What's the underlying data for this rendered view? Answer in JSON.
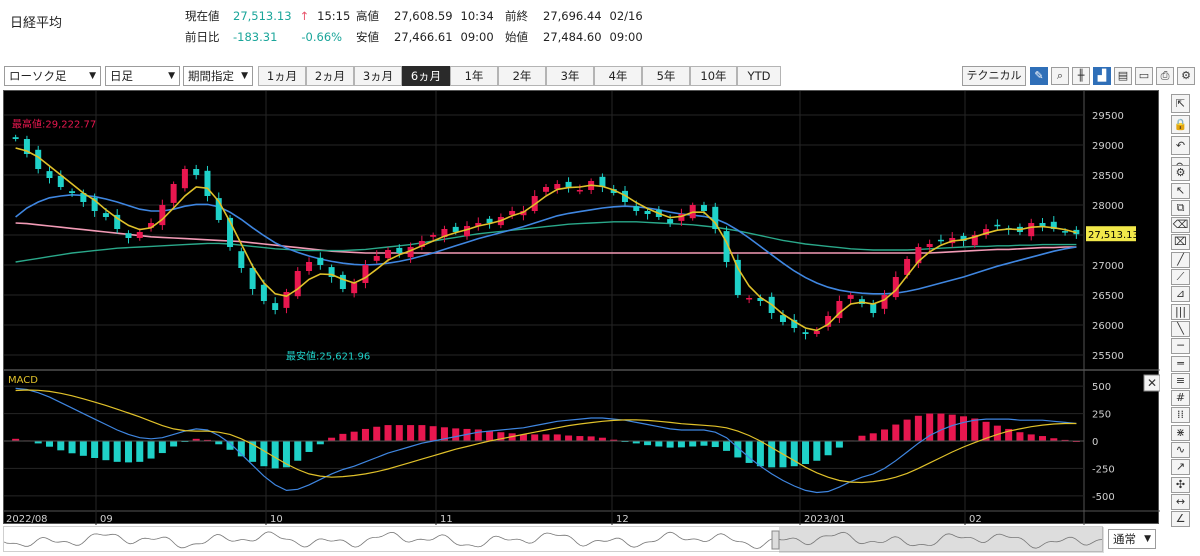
{
  "title": "日経平均",
  "quote": {
    "current_label": "現在値",
    "current_value": "27,513.13",
    "current_arrow": "↑",
    "current_time": "15:15",
    "change_label": "前日比",
    "change_value": "-183.31",
    "change_pct": "-0.66%",
    "high_label": "高値",
    "high_value": "27,608.59",
    "high_time": "10:34",
    "low_label": "安値",
    "low_value": "27,466.61",
    "low_time": "09:00",
    "prev_label": "前終",
    "prev_value": "27,696.44",
    "prev_date": "02/16",
    "open_label": "始値",
    "open_value": "27,484.60",
    "open_time": "09:00"
  },
  "toolbar": {
    "chart_type": "ローソク足",
    "interval": "日足",
    "period": "期間指定",
    "ranges": [
      "1ヵ月",
      "2ヵ月",
      "3ヵ月",
      "6ヵ月",
      "1年",
      "2年",
      "3年",
      "4年",
      "5年",
      "10年",
      "YTD"
    ],
    "active_range": "6ヵ月",
    "technical_label": "テクニカル",
    "icons": [
      "pen-icon",
      "zoom-icon",
      "bar-chart-icon",
      "area-chart-icon",
      "save-icon",
      "folder-icon",
      "print-icon",
      "settings-icon"
    ]
  },
  "chart_data": [
    {
      "type": "candlestick",
      "title": "",
      "x_labels": [
        "2022/08",
        "09",
        "10",
        "11",
        "12",
        "2023/01",
        "02"
      ],
      "yticks": [
        29500,
        29000,
        28500,
        28000,
        27500,
        27000,
        26500,
        26000,
        25500
      ],
      "ylim": [
        25300,
        29800
      ],
      "max_label": "最高値:29,222.77",
      "min_label": "最安値:25,621.96",
      "last_price": "27,513.13",
      "close": [
        29100,
        28850,
        28600,
        28450,
        28300,
        28200,
        28050,
        27900,
        27800,
        27600,
        27450,
        27550,
        27700,
        28000,
        28350,
        28600,
        28500,
        28150,
        27750,
        27300,
        26950,
        26600,
        26400,
        26250,
        26550,
        26900,
        27050,
        27000,
        26800,
        26600,
        26700,
        27000,
        27150,
        27250,
        27200,
        27300,
        27400,
        27500,
        27600,
        27550,
        27650,
        27700,
        27700,
        27800,
        27900,
        27900,
        28150,
        28300,
        28350,
        28300,
        28250,
        28400,
        28300,
        28200,
        28050,
        27900,
        27850,
        27800,
        27700,
        27850,
        28000,
        27900,
        27600,
        27050,
        26500,
        26450,
        26400,
        26200,
        26050,
        25950,
        25850,
        25900,
        26150,
        26400,
        26500,
        26350,
        26200,
        26500,
        26800,
        27100,
        27300,
        27350,
        27400,
        27450,
        27400,
        27500,
        27600,
        27650,
        27600,
        27550,
        27700,
        27650,
        27600,
        27550,
        27513
      ],
      "ma_short": [
        28950,
        28900,
        28800,
        28650,
        28500,
        28350,
        28200,
        28080,
        27920,
        27780,
        27660,
        27590,
        27620,
        27760,
        27950,
        28150,
        28300,
        28280,
        28060,
        27720,
        27350,
        26980,
        26700,
        26520,
        26480,
        26600,
        26760,
        26850,
        26840,
        26760,
        26700,
        26790,
        26930,
        27080,
        27170,
        27240,
        27320,
        27400,
        27480,
        27540,
        27590,
        27650,
        27690,
        27740,
        27820,
        27880,
        28010,
        28150,
        28260,
        28290,
        28300,
        28330,
        28310,
        28250,
        28160,
        28040,
        27940,
        27860,
        27790,
        27810,
        27880,
        27880,
        27700,
        27380,
        26950,
        26650,
        26460,
        26340,
        26180,
        26060,
        25950,
        25910,
        26010,
        26200,
        26350,
        26380,
        26350,
        26420,
        26580,
        26820,
        27060,
        27220,
        27330,
        27400,
        27420,
        27470,
        27530,
        27580,
        27600,
        27590,
        27630,
        27640,
        27620,
        27590,
        27540
      ],
      "ma_mid": [
        27800,
        27950,
        28050,
        28120,
        28150,
        28170,
        28160,
        28140,
        28100,
        28050,
        27990,
        27930,
        27900,
        27900,
        27930,
        27980,
        28010,
        28010,
        27970,
        27880,
        27760,
        27620,
        27490,
        27370,
        27280,
        27210,
        27150,
        27100,
        27060,
        27030,
        27010,
        27000,
        27010,
        27030,
        27060,
        27100,
        27150,
        27200,
        27260,
        27320,
        27380,
        27440,
        27490,
        27540,
        27590,
        27640,
        27700,
        27760,
        27820,
        27860,
        27890,
        27920,
        27950,
        27970,
        27980,
        27970,
        27950,
        27920,
        27880,
        27850,
        27830,
        27810,
        27770,
        27690,
        27580,
        27450,
        27310,
        27170,
        27030,
        26900,
        26790,
        26700,
        26630,
        26580,
        26550,
        26530,
        26520,
        26520,
        26530,
        26560,
        26600,
        26650,
        26700,
        26750,
        26800,
        26860,
        26920,
        26980,
        27030,
        27080,
        27130,
        27180,
        27230,
        27270,
        27300
      ],
      "ma_long": [
        27050,
        27080,
        27110,
        27140,
        27170,
        27200,
        27220,
        27240,
        27260,
        27280,
        27290,
        27300,
        27310,
        27320,
        27330,
        27340,
        27350,
        27360,
        27360,
        27350,
        27330,
        27310,
        27290,
        27270,
        27260,
        27250,
        27240,
        27240,
        27240,
        27240,
        27250,
        27260,
        27280,
        27300,
        27320,
        27340,
        27370,
        27400,
        27430,
        27460,
        27490,
        27520,
        27540,
        27560,
        27580,
        27600,
        27620,
        27640,
        27660,
        27680,
        27690,
        27700,
        27710,
        27720,
        27720,
        27720,
        27710,
        27700,
        27690,
        27680,
        27670,
        27650,
        27630,
        27600,
        27570,
        27530,
        27490,
        27450,
        27410,
        27380,
        27350,
        27330,
        27310,
        27290,
        27270,
        27260,
        27250,
        27250,
        27250,
        27250,
        27260,
        27270,
        27280,
        27290,
        27300,
        27310,
        27310,
        27320,
        27320,
        27330,
        27330,
        27340,
        27340,
        27340,
        27340
      ],
      "ma_very_long": [
        27700,
        27690,
        27670,
        27650,
        27630,
        27610,
        27590,
        27570,
        27550,
        27530,
        27510,
        27490,
        27470,
        27460,
        27450,
        27440,
        27430,
        27420,
        27410,
        27400,
        27390,
        27370,
        27350,
        27330,
        27310,
        27290,
        27270,
        27250,
        27230,
        27220,
        27210,
        27200,
        27200,
        27200,
        27200,
        27200,
        27200,
        27200,
        27200,
        27200,
        27200,
        27200,
        27200,
        27200,
        27200,
        27200,
        27200,
        27200,
        27200,
        27200,
        27200,
        27200,
        27200,
        27200,
        27200,
        27200,
        27200,
        27200,
        27200,
        27200,
        27200,
        27200,
        27200,
        27200,
        27200,
        27200,
        27200,
        27200,
        27200,
        27200,
        27200,
        27200,
        27200,
        27200,
        27200,
        27200,
        27200,
        27200,
        27200,
        27200,
        27200,
        27200,
        27210,
        27220,
        27230,
        27240,
        27250,
        27260,
        27260,
        27270,
        27280,
        27290,
        27290,
        27300,
        27300
      ]
    },
    {
      "type": "macd",
      "title": "MACD",
      "yticks": [
        500,
        250,
        0,
        -250,
        -500
      ],
      "ylim": [
        -620,
        620
      ],
      "macd": [
        480,
        470,
        440,
        400,
        350,
        300,
        250,
        200,
        150,
        100,
        60,
        30,
        20,
        30,
        60,
        90,
        110,
        100,
        50,
        -20,
        -120,
        -220,
        -320,
        -400,
        -450,
        -440,
        -400,
        -350,
        -300,
        -260,
        -230,
        -190,
        -150,
        -110,
        -80,
        -50,
        -20,
        0,
        20,
        40,
        60,
        80,
        90,
        100,
        110,
        120,
        140,
        160,
        180,
        190,
        200,
        210,
        210,
        200,
        190,
        170,
        150,
        130,
        110,
        100,
        100,
        100,
        80,
        30,
        -60,
        -150,
        -230,
        -300,
        -360,
        -410,
        -450,
        -470,
        -460,
        -420,
        -370,
        -330,
        -300,
        -250,
        -180,
        -100,
        -20,
        50,
        100,
        140,
        170,
        190,
        200,
        200,
        200,
        190,
        190,
        190,
        180,
        170,
        160
      ],
      "signal": [
        460,
        465,
        462,
        452,
        435,
        412,
        385,
        355,
        325,
        290,
        255,
        220,
        180,
        140,
        110,
        95,
        90,
        90,
        80,
        60,
        20,
        -30,
        -90,
        -150,
        -210,
        -260,
        -300,
        -320,
        -330,
        -325,
        -315,
        -300,
        -280,
        -255,
        -225,
        -195,
        -165,
        -135,
        -105,
        -75,
        -50,
        -25,
        0,
        20,
        40,
        60,
        80,
        100,
        120,
        140,
        155,
        168,
        180,
        188,
        192,
        192,
        188,
        180,
        170,
        158,
        150,
        143,
        135,
        120,
        90,
        50,
        0,
        -60,
        -120,
        -180,
        -240,
        -290,
        -330,
        -360,
        -375,
        -378,
        -370,
        -355,
        -330,
        -295,
        -250,
        -200,
        -150,
        -100,
        -55,
        -15,
        25,
        60,
        90,
        110,
        130,
        145,
        155,
        160,
        160
      ]
    }
  ],
  "sidebar_icons": [
    "collapse-icon",
    "lock-icon",
    "undo-icon",
    "redo-icon",
    "settings-icon",
    "cursor-icon",
    "copy-icon",
    "eraser-icon",
    "eraser-all-icon",
    "line-icon",
    "ray-icon",
    "fan-icon",
    "vertical-lines-icon",
    "diagonal-icon",
    "horizontal-line-icon",
    "channel-icon",
    "fib-icon",
    "grid-icon",
    "cycle-icon",
    "pattern-icon",
    "wave-icon",
    "trend-icon",
    "cross-icon",
    "measure-icon",
    "angle-icon"
  ],
  "navigator": {
    "mode": "通常"
  },
  "colors": {
    "background": "#000000",
    "up": "#e8174f",
    "down": "#1fd1c8",
    "ma_short": "#e0c12a",
    "ma_mid": "#3f86e0",
    "ma_long": "#2aa88a",
    "ma_very_long": "#f29bb6",
    "macd": "#3f86e0",
    "signal": "#e0c12a",
    "hist_pos": "#e8174f",
    "hist_neg": "#1fd1c8"
  }
}
